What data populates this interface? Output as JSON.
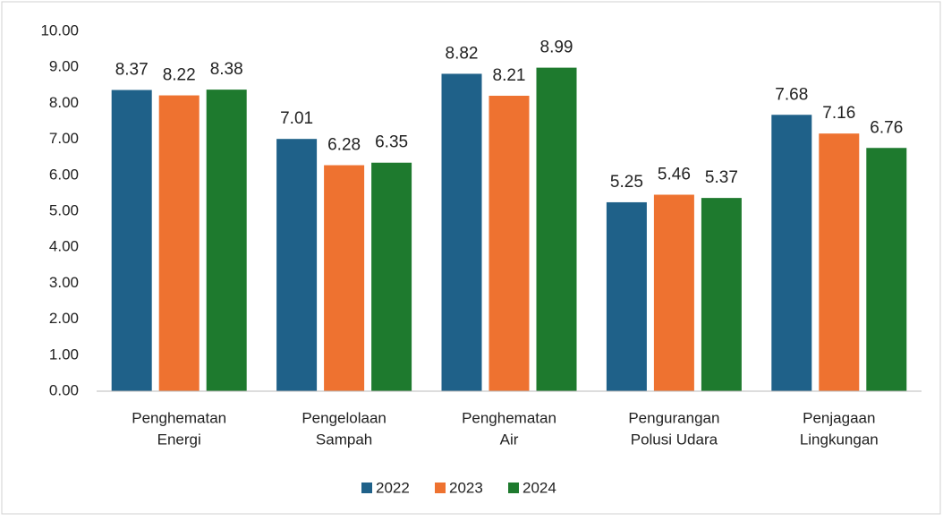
{
  "chart_data": {
    "type": "bar",
    "categories": [
      [
        "Penghematan",
        "Energi"
      ],
      [
        "Pengelolaan",
        "Sampah"
      ],
      [
        "Penghematan",
        "Air"
      ],
      [
        "Pengurangan",
        "Polusi Udara"
      ],
      [
        "Penjagaan",
        "Lingkungan"
      ]
    ],
    "series": [
      {
        "name": "2022",
        "color": "#1f6189",
        "values": [
          8.37,
          7.01,
          8.82,
          5.25,
          7.68
        ]
      },
      {
        "name": "2023",
        "color": "#ee7230",
        "values": [
          8.22,
          6.28,
          8.21,
          5.46,
          7.16
        ]
      },
      {
        "name": "2024",
        "color": "#1e7a2e",
        "values": [
          8.38,
          6.35,
          8.99,
          5.37,
          6.76
        ]
      }
    ],
    "ylim": [
      0,
      10
    ],
    "yticks": [
      {
        "value": 0,
        "label": "0.00"
      },
      {
        "value": 1,
        "label": "1.00"
      },
      {
        "value": 2,
        "label": "2.00"
      },
      {
        "value": 3,
        "label": "3.00"
      },
      {
        "value": 4,
        "label": "4.00"
      },
      {
        "value": 5,
        "label": "5.00"
      },
      {
        "value": 6,
        "label": "6.00"
      },
      {
        "value": 7,
        "label": "7.00"
      },
      {
        "value": 8,
        "label": "8.00"
      },
      {
        "value": 9,
        "label": "9.00"
      },
      {
        "value": 10,
        "label": "10.00"
      }
    ],
    "grid": false,
    "legend": "bottom"
  }
}
